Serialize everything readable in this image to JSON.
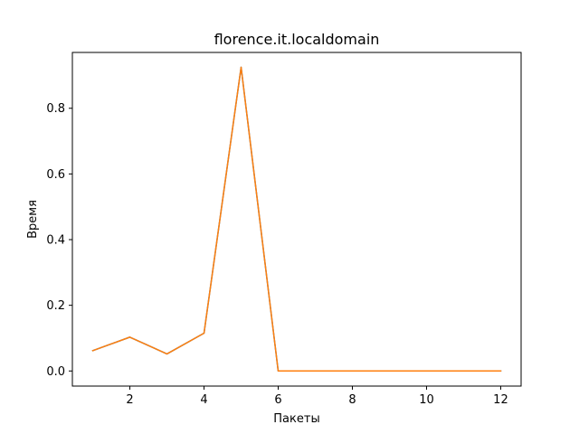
{
  "chart_data": {
    "type": "line",
    "title": "florence.it.localdomain",
    "xlabel": "Пакеты",
    "ylabel": "Время",
    "xlim": [
      0.45,
      12.55
    ],
    "ylim": [
      -0.046,
      0.97
    ],
    "xticks": [
      2,
      4,
      6,
      8,
      10,
      12
    ],
    "yticks": [
      0.0,
      0.2,
      0.4,
      0.6,
      0.8
    ],
    "ytick_labels": [
      "0.0",
      "0.2",
      "0.4",
      "0.6",
      "0.8"
    ],
    "grid": false,
    "series": [
      {
        "color": "#1f77b4",
        "x": [
          1,
          2,
          3,
          4,
          5,
          6,
          7,
          8,
          9,
          10,
          11,
          12
        ],
        "y": [
          0.062,
          0.103,
          0.052,
          0.115,
          0.925,
          0.0,
          0.0,
          0.0,
          0.0,
          0.0,
          0.0,
          0.0
        ]
      },
      {
        "color": "#ff7f0e",
        "x": [
          1,
          2,
          3,
          4,
          5,
          6,
          7,
          8,
          9,
          10,
          11,
          12
        ],
        "y": [
          0.062,
          0.103,
          0.052,
          0.115,
          0.925,
          0.0,
          0.0,
          0.0,
          0.0,
          0.0,
          0.0,
          0.0
        ]
      }
    ]
  }
}
